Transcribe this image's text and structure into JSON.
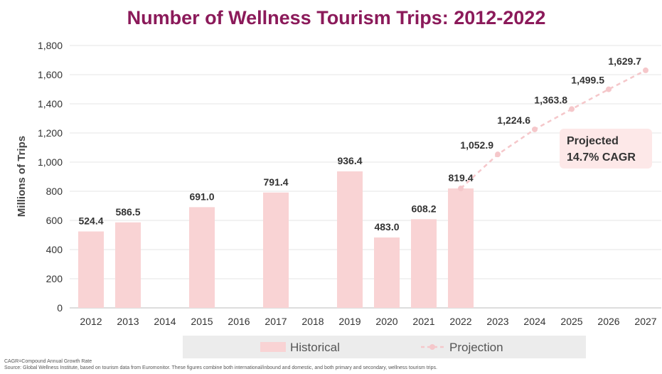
{
  "colors": {
    "title": "#8b1a5a",
    "bar": "#f9d3d4",
    "projection_line": "#f5c7ca",
    "grid": "#e6e6e6",
    "legend_bg": "#ececec",
    "callout_bg": "#fde8e8"
  },
  "chart_data": {
    "type": "bar",
    "title": "Number of Wellness Tourism Trips: 2012-2022",
    "ylabel": "Millions of Trips",
    "ylim": [
      0,
      1800
    ],
    "yticks": [
      0,
      200,
      400,
      600,
      800,
      1000,
      1200,
      1400,
      1600,
      1800
    ],
    "ytick_labels": [
      "0",
      "200",
      "400",
      "600",
      "800",
      "1,000",
      "1,200",
      "1,400",
      "1,600",
      "1,800"
    ],
    "grid": true,
    "legend_position": "bottom",
    "categories": [
      "2012",
      "2013",
      "2014",
      "2015",
      "2016",
      "2017",
      "2018",
      "2019",
      "2020",
      "2021",
      "2022",
      "2023",
      "2024",
      "2025",
      "2026",
      "2027"
    ],
    "series": [
      {
        "name": "Historical",
        "type": "bar",
        "points": [
          {
            "x": "2012",
            "y": 524.4,
            "label": "524.4"
          },
          {
            "x": "2013",
            "y": 586.5,
            "label": "586.5"
          },
          {
            "x": "2015",
            "y": 691.0,
            "label": "691.0"
          },
          {
            "x": "2017",
            "y": 791.4,
            "label": "791.4"
          },
          {
            "x": "2019",
            "y": 936.4,
            "label": "936.4"
          },
          {
            "x": "2020",
            "y": 483.0,
            "label": "483.0"
          },
          {
            "x": "2021",
            "y": 608.2,
            "label": "608.2"
          },
          {
            "x": "2022",
            "y": 819.4,
            "label": "819.4"
          }
        ]
      },
      {
        "name": "Projection",
        "type": "line",
        "points": [
          {
            "x": "2022",
            "y": 819.4,
            "label": ""
          },
          {
            "x": "2023",
            "y": 1052.9,
            "label": "1,052.9"
          },
          {
            "x": "2024",
            "y": 1224.6,
            "label": "1,224.6"
          },
          {
            "x": "2025",
            "y": 1363.8,
            "label": "1,363.8"
          },
          {
            "x": "2026",
            "y": 1499.5,
            "label": "1,499.5"
          },
          {
            "x": "2027",
            "y": 1629.7,
            "label": "1,629.7"
          }
        ]
      }
    ],
    "annotation": {
      "line1": "Projected",
      "line2": "14.7% CAGR"
    }
  },
  "footnotes": {
    "cagr": "CAGR=Compound Annual Growth Rate",
    "source": "Source: Global Wellness Institute, based on tourism data from Euromonitor. These figures combine both international/inbound and domestic, and both primary and secondary, wellness tourism trips."
  }
}
